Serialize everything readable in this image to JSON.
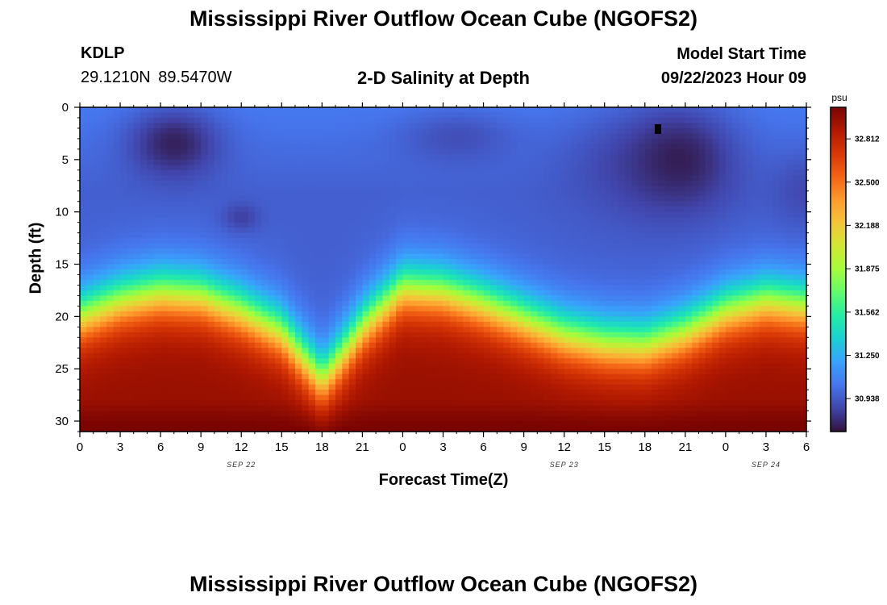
{
  "header": {
    "title": "Mississippi River Outflow Ocean Cube (NGOFS2)",
    "station_id": "KDLP",
    "station_location": "29.1210N  89.5470W",
    "subtitle": "2-D Salinity at Depth",
    "model_start_label": "Model Start Time",
    "model_start_value": "09/22/2023 Hour 09"
  },
  "footer": {
    "title": "Mississippi River Outflow Ocean Cube (NGOFS2)"
  },
  "chart_data": {
    "type": "heatmap",
    "xlabel": "Forecast Time(Z)",
    "ylabel": "Depth (ft)",
    "xlim": [
      0,
      54
    ],
    "ylim": [
      0,
      31
    ],
    "y_inverted": true,
    "x_ticks": [
      0,
      3,
      6,
      9,
      12,
      15,
      18,
      21,
      24,
      27,
      30,
      33,
      36,
      39,
      42,
      45,
      48,
      51,
      54
    ],
    "x_tick_labels": [
      "0",
      "3",
      "6",
      "9",
      "12",
      "15",
      "18",
      "21",
      "0",
      "3",
      "6",
      "9",
      "12",
      "15",
      "18",
      "21",
      "0",
      "3",
      "6"
    ],
    "date_labels": [
      {
        "at": 12,
        "text": "SEP 22"
      },
      {
        "at": 36,
        "text": "SEP 23"
      },
      {
        "at": 51,
        "text": "SEP 24"
      }
    ],
    "y_ticks": [
      0,
      5,
      10,
      15,
      20,
      25,
      30
    ],
    "colorbar": {
      "unit": "psu",
      "min": 30.7,
      "max": 33.04,
      "tick_values": [
        32.812,
        32.5,
        32.188,
        31.875,
        31.562,
        31.25,
        30.938
      ],
      "tick_labels": [
        "32.812",
        "32.500",
        "32.188",
        "31.875",
        "31.562",
        "31.250",
        "30.938"
      ],
      "colors": [
        "#30123b",
        "#4145ab",
        "#4675ed",
        "#39a2fc",
        "#1bcfd4",
        "#24eca6",
        "#61fc6c",
        "#a4fc3b",
        "#d1e834",
        "#f3c63a",
        "#fe9b2d",
        "#f36315",
        "#d93806",
        "#b11901",
        "#7a0402"
      ]
    },
    "salinity_model": {
      "surface_salinity": 30.96,
      "surface_layer_salinity": 31.05,
      "bottom_salinity": 32.95,
      "halocline_depth_profile": {
        "x": [
          0,
          3,
          6,
          9,
          12,
          15,
          17,
          18,
          19,
          21,
          24,
          27,
          30,
          33,
          36,
          39,
          42,
          45,
          48,
          51,
          54
        ],
        "depth": [
          20,
          18.5,
          17.7,
          18,
          19.5,
          21.5,
          24.5,
          26,
          24.5,
          21,
          17.3,
          17.6,
          18.8,
          20.3,
          21.8,
          22.6,
          22.8,
          21.5,
          19.5,
          18.5,
          19
        ]
      },
      "halocline_thickness_ft": 6.5,
      "low_salinity_patches": [
        {
          "x_center": 7,
          "depth_center": 3.5,
          "x_radius": 4,
          "depth_radius": 4,
          "salinity": 30.75
        },
        {
          "x_center": 12,
          "depth_center": 10.5,
          "x_radius": 1.6,
          "depth_radius": 1.6,
          "salinity": 30.85
        },
        {
          "x_center": 28,
          "depth_center": 3,
          "x_radius": 5,
          "depth_radius": 3,
          "salinity": 30.9
        },
        {
          "x_center": 40,
          "depth_center": 6,
          "x_radius": 6,
          "depth_radius": 6,
          "salinity": 30.9
        },
        {
          "x_center": 44.5,
          "depth_center": 5,
          "x_radius": 5,
          "depth_radius": 6,
          "salinity": 30.74
        },
        {
          "x_center": 54,
          "depth_center": 8,
          "x_radius": 3,
          "depth_radius": 4,
          "salinity": 30.88
        }
      ]
    }
  }
}
